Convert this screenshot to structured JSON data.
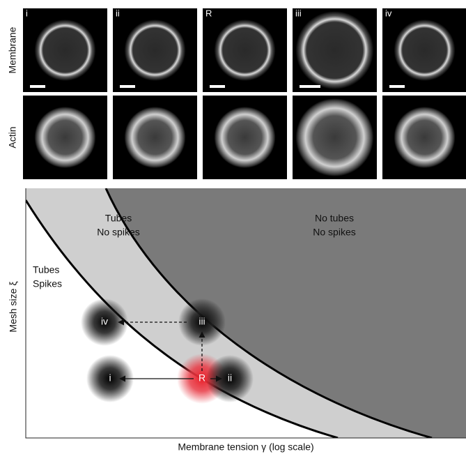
{
  "panels": [
    {
      "label": "i"
    },
    {
      "label": "ii"
    },
    {
      "label": "R"
    },
    {
      "label": "iii"
    },
    {
      "label": "iv"
    }
  ],
  "rows": [
    "Membrane",
    "Actin"
  ],
  "diagram": {
    "regions": [
      {
        "lines": [
          "Tubes",
          "No spikes"
        ]
      },
      {
        "lines": [
          "No tubes",
          "No spikes"
        ]
      },
      {
        "lines": [
          "Tubes",
          "Spikes"
        ]
      }
    ],
    "points": [
      "iv",
      "iii",
      "i",
      "R",
      "ii"
    ],
    "x_axis_label": "Membrane tension γ (log scale)",
    "y_axis_label": "Mesh size ξ"
  }
}
